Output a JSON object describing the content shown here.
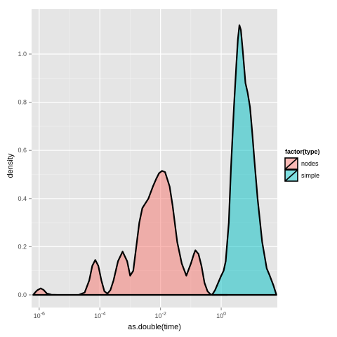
{
  "chart_data": {
    "type": "area",
    "xlabel": "as.double(time)",
    "ylabel": "density",
    "x_scale": "log10",
    "xlim_log10": [
      -6.25,
      1.85
    ],
    "ylim": [
      0,
      1.14
    ],
    "x_ticks": [
      {
        "log10": -6,
        "base": "10",
        "exp": "-6"
      },
      {
        "log10": -4,
        "base": "10",
        "exp": "-4"
      },
      {
        "log10": -2,
        "base": "10",
        "exp": "-2"
      },
      {
        "log10": 0,
        "base": "10",
        "exp": "0"
      }
    ],
    "y_ticks": [
      {
        "value": 0.0,
        "label": "0.0"
      },
      {
        "value": 0.2,
        "label": "0.2"
      },
      {
        "value": 0.4,
        "label": "0.4"
      },
      {
        "value": 0.6,
        "label": "0.6"
      },
      {
        "value": 0.8,
        "label": "0.8"
      },
      {
        "value": 1.0,
        "label": "1.0"
      }
    ],
    "grid": true,
    "legend": {
      "title": "factor(type)",
      "position": "right",
      "entries": [
        {
          "label": "nodes",
          "color": "#F8766D"
        },
        {
          "label": "simple",
          "color": "#00BFC4"
        }
      ]
    },
    "series": [
      {
        "name": "nodes",
        "color": "#F8766D",
        "x_log10": [
          -6.2,
          -6.1,
          -6.05,
          -5.95,
          -5.85,
          -5.75,
          -5.6,
          -5.4,
          -5.2,
          -5.0,
          -4.7,
          -4.5,
          -4.35,
          -4.25,
          -4.15,
          -4.05,
          -3.95,
          -3.85,
          -3.75,
          -3.65,
          -3.55,
          -3.4,
          -3.25,
          -3.1,
          -3.0,
          -2.9,
          -2.8,
          -2.7,
          -2.6,
          -2.5,
          -2.4,
          -2.25,
          -2.15,
          -2.05,
          -1.95,
          -1.85,
          -1.7,
          -1.6,
          -1.45,
          -1.3,
          -1.15,
          -1.0,
          -0.9,
          -0.85,
          -0.75,
          -0.65,
          -0.55,
          -0.45,
          -0.35,
          -0.25,
          -0.15,
          -0.05,
          0.05,
          0.15,
          0.2
        ],
        "y": [
          0.0,
          0.015,
          0.02,
          0.027,
          0.02,
          0.006,
          0.001,
          0.0,
          0.0,
          0.0,
          0.0,
          0.01,
          0.06,
          0.12,
          0.145,
          0.12,
          0.06,
          0.015,
          0.005,
          0.02,
          0.06,
          0.14,
          0.18,
          0.14,
          0.08,
          0.1,
          0.2,
          0.3,
          0.36,
          0.38,
          0.4,
          0.45,
          0.48,
          0.505,
          0.515,
          0.51,
          0.45,
          0.37,
          0.22,
          0.13,
          0.08,
          0.13,
          0.17,
          0.185,
          0.17,
          0.12,
          0.05,
          0.015,
          0.002,
          0.0,
          0.0,
          0.0,
          0.0,
          0.0,
          0.0
        ]
      },
      {
        "name": "simple",
        "color": "#00BFC4",
        "x_log10": [
          -0.3,
          -0.2,
          -0.1,
          0.0,
          0.08,
          0.15,
          0.25,
          0.32,
          0.42,
          0.5,
          0.55,
          0.6,
          0.65,
          0.72,
          0.8,
          0.87,
          0.95,
          1.02,
          1.1,
          1.2,
          1.35,
          1.5,
          1.6,
          1.72,
          1.82
        ],
        "y": [
          0.0,
          0.02,
          0.05,
          0.08,
          0.1,
          0.14,
          0.3,
          0.52,
          0.78,
          0.96,
          1.06,
          1.12,
          1.1,
          1.0,
          0.88,
          0.84,
          0.78,
          0.68,
          0.55,
          0.4,
          0.22,
          0.11,
          0.08,
          0.04,
          0.0
        ]
      }
    ]
  }
}
